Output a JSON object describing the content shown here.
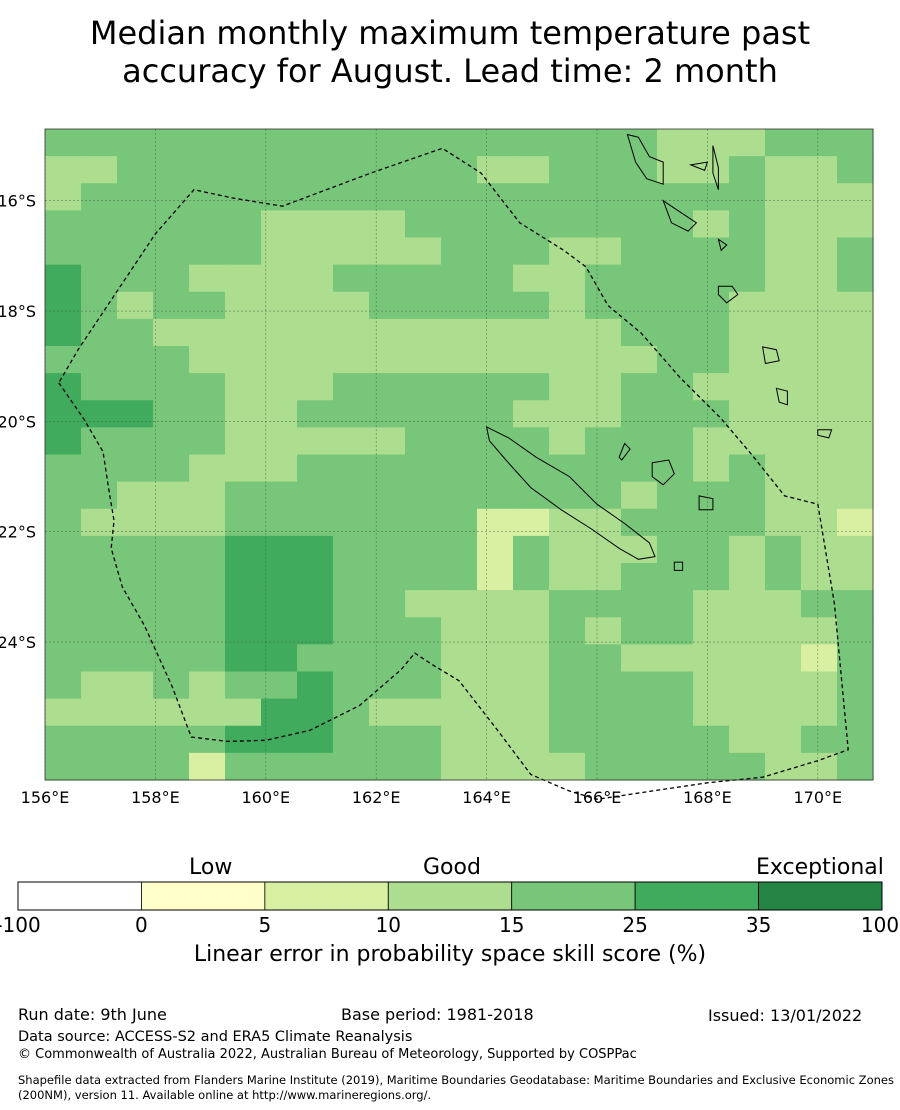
{
  "title": {
    "line1": "Median monthly maximum temperature past",
    "line2": "accuracy for August. Lead time: 2 month"
  },
  "map": {
    "lon_min": 156,
    "lon_max": 171,
    "lat_min": -26.5,
    "lat_max": -14.7,
    "x_ticks": [
      {
        "lon": 156,
        "label": "156°E"
      },
      {
        "lon": 158,
        "label": "158°E"
      },
      {
        "lon": 160,
        "label": "160°E"
      },
      {
        "lon": 162,
        "label": "162°E"
      },
      {
        "lon": 164,
        "label": "164°E"
      },
      {
        "lon": 166,
        "label": "166°E"
      },
      {
        "lon": 168,
        "label": "168°E"
      },
      {
        "lon": 170,
        "label": "170°E"
      }
    ],
    "y_ticks": [
      {
        "lat": -16,
        "label": "16°S"
      },
      {
        "lat": -18,
        "label": "18°S"
      },
      {
        "lat": -20,
        "label": "20°S"
      },
      {
        "lat": -22,
        "label": "22°S"
      },
      {
        "lat": -24,
        "label": "24°S"
      }
    ],
    "grid": true,
    "skill_grid_levels": [
      "44444444444444444333444",
      "33444444444433444334334",
      "34444444444444444444333",
      "44444433334444444434333",
      "44444433333444334444334",
      "54443333444443344444334",
      "54344333344444344443333",
      "54433333333333334443333",
      "44443333333333333443333",
      "54444333444444334433333",
      "55544334444443334443333",
      "54444333334444344433333",
      "44443334444444444434333",
      "44333444444444443444333",
      "43333444444422334444332",
      "44444555444424333443433",
      "44444555444424334443433",
      "44444555443333444433344",
      "44444555444333434433334",
      "44444554444333443333324",
      "43343445444333444433334",
      "33333355433333444433334",
      "44444555444333444443344",
      "44442444444333344444334"
    ],
    "eez_boundary": [
      [
        156.25,
        -19.3
      ],
      [
        156.7,
        -19.95
      ],
      [
        157.05,
        -20.55
      ],
      [
        157.15,
        -21.2
      ],
      [
        157.25,
        -21.8
      ],
      [
        157.2,
        -22.3
      ],
      [
        157.4,
        -23.0
      ],
      [
        157.8,
        -23.7
      ],
      [
        158.3,
        -24.8
      ],
      [
        158.65,
        -25.72
      ],
      [
        159.3,
        -25.8
      ],
      [
        160.0,
        -25.78
      ],
      [
        160.8,
        -25.6
      ],
      [
        161.7,
        -25.15
      ],
      [
        162.45,
        -24.5
      ],
      [
        162.7,
        -24.2
      ],
      [
        163.0,
        -24.4
      ],
      [
        163.5,
        -24.7
      ],
      [
        164.2,
        -25.6
      ],
      [
        164.8,
        -26.4
      ],
      [
        165.5,
        -26.7
      ],
      [
        166.0,
        -26.85
      ],
      [
        167.0,
        -26.7
      ],
      [
        168.0,
        -26.55
      ],
      [
        169.0,
        -26.45
      ],
      [
        170.0,
        -26.15
      ],
      [
        170.55,
        -25.95
      ],
      [
        170.3,
        -23.3
      ],
      [
        170.0,
        -21.5
      ],
      [
        169.4,
        -21.35
      ],
      [
        168.8,
        -20.6
      ],
      [
        168.25,
        -19.95
      ],
      [
        167.5,
        -19.2
      ],
      [
        166.8,
        -18.4
      ],
      [
        166.2,
        -17.9
      ],
      [
        165.8,
        -17.2
      ],
      [
        165.4,
        -16.9
      ],
      [
        164.6,
        -16.4
      ],
      [
        163.9,
        -15.5
      ],
      [
        163.2,
        -15.05
      ],
      [
        161.9,
        -15.5
      ],
      [
        160.3,
        -16.1
      ],
      [
        159.4,
        -15.95
      ],
      [
        158.7,
        -15.8
      ],
      [
        158.0,
        -16.6
      ],
      [
        157.2,
        -17.8
      ],
      [
        156.6,
        -18.7
      ],
      [
        156.25,
        -19.3
      ]
    ],
    "islands": [
      {
        "name": "Grande Terre",
        "points": [
          [
            164.0,
            -20.1
          ],
          [
            164.4,
            -20.3
          ],
          [
            164.9,
            -20.65
          ],
          [
            165.5,
            -21.0
          ],
          [
            166.0,
            -21.5
          ],
          [
            166.5,
            -21.85
          ],
          [
            166.95,
            -22.2
          ],
          [
            167.05,
            -22.45
          ],
          [
            166.75,
            -22.5
          ],
          [
            166.4,
            -22.3
          ],
          [
            165.9,
            -21.95
          ],
          [
            165.35,
            -21.6
          ],
          [
            164.8,
            -21.2
          ],
          [
            164.35,
            -20.7
          ],
          [
            164.05,
            -20.35
          ],
          [
            164.0,
            -20.1
          ]
        ]
      },
      {
        "name": "Ile des Pins",
        "points": [
          [
            167.4,
            -22.55
          ],
          [
            167.55,
            -22.55
          ],
          [
            167.55,
            -22.7
          ],
          [
            167.4,
            -22.7
          ],
          [
            167.4,
            -22.55
          ]
        ]
      },
      {
        "name": "Ouvea",
        "points": [
          [
            166.5,
            -20.4
          ],
          [
            166.6,
            -20.5
          ],
          [
            166.45,
            -20.7
          ],
          [
            166.4,
            -20.65
          ],
          [
            166.5,
            -20.4
          ]
        ]
      },
      {
        "name": "Lifou",
        "points": [
          [
            167.0,
            -20.75
          ],
          [
            167.3,
            -20.7
          ],
          [
            167.4,
            -20.95
          ],
          [
            167.2,
            -21.15
          ],
          [
            167.0,
            -21.0
          ],
          [
            167.0,
            -20.75
          ]
        ]
      },
      {
        "name": "Mare",
        "points": [
          [
            167.85,
            -21.35
          ],
          [
            168.1,
            -21.4
          ],
          [
            168.1,
            -21.6
          ],
          [
            167.85,
            -21.6
          ],
          [
            167.85,
            -21.35
          ]
        ]
      },
      {
        "name": "Espiritu Santo",
        "points": [
          [
            166.55,
            -14.8
          ],
          [
            166.75,
            -14.85
          ],
          [
            166.95,
            -15.2
          ],
          [
            167.2,
            -15.3
          ],
          [
            167.2,
            -15.7
          ],
          [
            166.9,
            -15.6
          ],
          [
            166.7,
            -15.3
          ],
          [
            166.55,
            -14.8
          ]
        ]
      },
      {
        "name": "Malakula",
        "points": [
          [
            167.2,
            -16.0
          ],
          [
            167.5,
            -16.2
          ],
          [
            167.8,
            -16.4
          ],
          [
            167.65,
            -16.55
          ],
          [
            167.35,
            -16.4
          ],
          [
            167.2,
            -16.0
          ]
        ]
      },
      {
        "name": "Maewo-Pentecost",
        "points": [
          [
            168.1,
            -15.0
          ],
          [
            168.2,
            -15.4
          ],
          [
            168.2,
            -15.8
          ],
          [
            168.1,
            -15.5
          ],
          [
            168.1,
            -15.0
          ]
        ]
      },
      {
        "name": "Ambae",
        "points": [
          [
            167.7,
            -15.35
          ],
          [
            168.0,
            -15.3
          ],
          [
            167.95,
            -15.45
          ],
          [
            167.7,
            -15.35
          ]
        ]
      },
      {
        "name": "Efate",
        "points": [
          [
            168.2,
            -17.55
          ],
          [
            168.45,
            -17.55
          ],
          [
            168.55,
            -17.7
          ],
          [
            168.35,
            -17.85
          ],
          [
            168.2,
            -17.7
          ],
          [
            168.2,
            -17.55
          ]
        ]
      },
      {
        "name": "Erromango",
        "points": [
          [
            169.0,
            -18.65
          ],
          [
            169.25,
            -18.7
          ],
          [
            169.3,
            -18.9
          ],
          [
            169.05,
            -18.95
          ],
          [
            169.0,
            -18.65
          ]
        ]
      },
      {
        "name": "Tanna",
        "points": [
          [
            169.25,
            -19.4
          ],
          [
            169.45,
            -19.45
          ],
          [
            169.45,
            -19.7
          ],
          [
            169.3,
            -19.65
          ],
          [
            169.25,
            -19.4
          ]
        ]
      },
      {
        "name": "Epi",
        "points": [
          [
            168.2,
            -16.7
          ],
          [
            168.35,
            -16.8
          ],
          [
            168.25,
            -16.9
          ],
          [
            168.2,
            -16.7
          ]
        ]
      },
      {
        "name": "Aneityum",
        "points": [
          [
            170.0,
            -20.15
          ],
          [
            170.25,
            -20.15
          ],
          [
            170.2,
            -20.3
          ],
          [
            170.0,
            -20.25
          ],
          [
            170.0,
            -20.15
          ]
        ]
      }
    ]
  },
  "legend": {
    "category_low": "Low",
    "category_good": "Good",
    "category_exceptional": "Exceptional",
    "ticks": [
      "-100",
      "0",
      "5",
      "10",
      "15",
      "25",
      "35",
      "100"
    ],
    "colors": [
      "#ffffff",
      "#ffffcc",
      "#d9f0a3",
      "#addd8e",
      "#78c679",
      "#41ab5d",
      "#238443"
    ],
    "label": "Linear error in probability space skill score (%)"
  },
  "footer": {
    "run_date": "Run date: 9th June",
    "base_period": "Base period: 1981-2018",
    "issued": "Issued: 13/01/2022",
    "data_source": "Data source: ACCESS-S2 and ERA5 Climate Reanalysis",
    "copyright": "© Commonwealth of Australia 2022, Australian Bureau of Meteorology, Supported by COSPPac",
    "shapefile_credit": "Shapefile data extracted from Flanders Marine Institute (2019), Maritime Boundaries Geodatabase: Maritime Boundaries and Exclusive Economic Zones (200NM), version 11. Available online at http://www.marineregions.org/."
  }
}
